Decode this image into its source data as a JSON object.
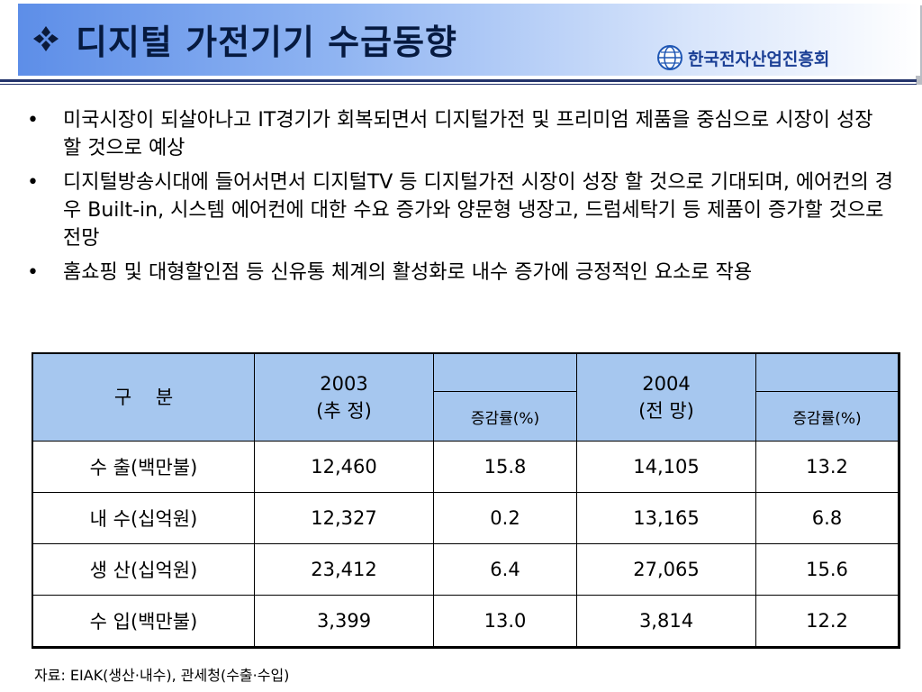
{
  "header": {
    "title": "디지털 가전기기 수급동향",
    "title_marker_icon": "four-diamond-bullet",
    "logo_text": "한국전자산업진흥회",
    "colors": {
      "band_left": "#5d8ee8",
      "band_right": "#ffffff",
      "rule": "#23336b",
      "title_text": "#061a40",
      "logo_text": "#1b3f95"
    }
  },
  "bullets": [
    "미국시장이 되살아나고 IT경기가 회복되면서 디지털가전 및 프리미엄 제품을 중심으로 시장이 성장 할 것으로 예상",
    "디지털방송시대에 들어서면서 디지털TV 등 디지털가전 시장이 성장 할 것으로 기대되며, 에어컨의 경우 Built-in, 시스템 에어컨에 대한 수요 증가와 양문형 냉장고, 드럼세탁기 등 제품이 증가할 것으로 전망",
    "홈쇼핑 및 대형할인점 등 신유통 체계의 활성화로 내수 증가에 긍정적인 요소로 작용"
  ],
  "bullet_symbol": "•",
  "table": {
    "header": {
      "category": "구    분",
      "year1": "2003\n(추 정)",
      "year2": "2004\n(전 망)",
      "rate1": "증감률(%)",
      "rate2": "증감률(%)"
    },
    "header_bg": "#a6c7ef",
    "rows": [
      {
        "label": "수 출(백만불)",
        "v2003": "12,460",
        "r2003": "15.8",
        "v2004": "14,105",
        "r2004": "13.2"
      },
      {
        "label": "내 수(십억원)",
        "v2003": "12,327",
        "r2003": "0.2",
        "v2004": "13,165",
        "r2004": "6.8"
      },
      {
        "label": "생 산(십억원)",
        "v2003": "23,412",
        "r2003": "6.4",
        "v2004": "27,065",
        "r2004": "15.6"
      },
      {
        "label": "수 입(백만불)",
        "v2003": "3,399",
        "r2003": "13.0",
        "v2004": "3,814",
        "r2004": "12.2"
      }
    ]
  },
  "source_note": "자료: EIAK(생산·내수), 관세청(수출·수입)"
}
